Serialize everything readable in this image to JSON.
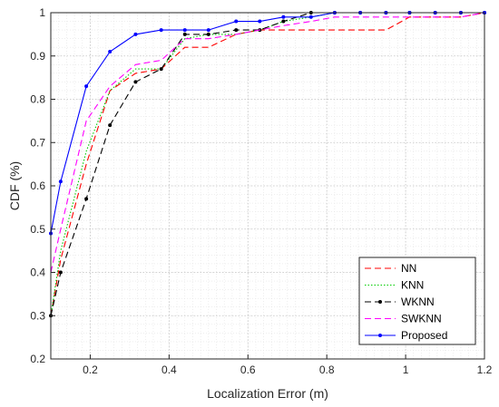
{
  "chart_data": {
    "type": "line",
    "title": "",
    "xlabel": "Localization Error (m)",
    "ylabel": "CDF (%)",
    "xlim": [
      0.1,
      1.2
    ],
    "ylim": [
      0.2,
      1.0
    ],
    "xticks": [
      0.2,
      0.4,
      0.6,
      0.8,
      1,
      1.2
    ],
    "yticks": [
      0.2,
      0.3,
      0.4,
      0.5,
      0.6,
      0.7,
      0.8,
      0.9,
      1
    ],
    "grid": "major and minor, dotted",
    "legend_position": "bottom-right",
    "series": [
      {
        "name": "NN",
        "color": "#ff0000",
        "line_style": "dashed",
        "marker": "none",
        "x": [
          0.1,
          0.125,
          0.19,
          0.25,
          0.315,
          0.38,
          0.44,
          0.5,
          0.57,
          0.63,
          0.69,
          0.76,
          0.82,
          0.885,
          0.95,
          1.01,
          1.075,
          1.14,
          1.2
        ],
        "y": [
          0.3,
          0.43,
          0.65,
          0.82,
          0.86,
          0.87,
          0.92,
          0.92,
          0.95,
          0.96,
          0.96,
          0.96,
          0.96,
          0.96,
          0.96,
          0.99,
          0.99,
          0.99,
          1.0
        ]
      },
      {
        "name": "KNN",
        "color": "#00cc00",
        "line_style": "dotted",
        "marker": "none",
        "x": [
          0.1,
          0.125,
          0.19,
          0.25,
          0.315,
          0.38,
          0.44,
          0.5,
          0.57,
          0.63,
          0.69,
          0.76,
          0.82,
          0.885,
          0.95,
          1.01,
          1.075,
          1.14,
          1.2
        ],
        "y": [
          0.3,
          0.45,
          0.68,
          0.82,
          0.87,
          0.87,
          0.94,
          0.95,
          0.95,
          0.96,
          0.98,
          0.99,
          1.0,
          1.0,
          1.0,
          1.0,
          1.0,
          1.0,
          1.0
        ]
      },
      {
        "name": "WKNN",
        "color": "#000000",
        "line_style": "dashed",
        "marker": "dot",
        "x": [
          0.1,
          0.125,
          0.19,
          0.25,
          0.315,
          0.38,
          0.44,
          0.5,
          0.57,
          0.63,
          0.69,
          0.76,
          0.82,
          0.885,
          0.95,
          1.01,
          1.075,
          1.14,
          1.2
        ],
        "y": [
          0.3,
          0.4,
          0.57,
          0.74,
          0.84,
          0.87,
          0.95,
          0.95,
          0.96,
          0.96,
          0.98,
          1.0,
          1.0,
          1.0,
          1.0,
          1.0,
          1.0,
          1.0,
          1.0
        ]
      },
      {
        "name": "SWKNN",
        "color": "#ff00ff",
        "line_style": "dashed",
        "marker": "none",
        "x": [
          0.1,
          0.125,
          0.19,
          0.25,
          0.315,
          0.38,
          0.44,
          0.5,
          0.57,
          0.63,
          0.69,
          0.76,
          0.82,
          0.885,
          0.95,
          1.01,
          1.075,
          1.14,
          1.2
        ],
        "y": [
          0.4,
          0.5,
          0.75,
          0.83,
          0.88,
          0.89,
          0.94,
          0.94,
          0.95,
          0.96,
          0.97,
          0.98,
          0.99,
          0.99,
          0.99,
          0.99,
          0.99,
          0.99,
          1.0
        ]
      },
      {
        "name": "Proposed",
        "color": "#0000ff",
        "line_style": "solid",
        "marker": "dot",
        "x": [
          0.1,
          0.125,
          0.19,
          0.25,
          0.315,
          0.38,
          0.44,
          0.5,
          0.57,
          0.63,
          0.69,
          0.76,
          0.82,
          0.885,
          0.95,
          1.01,
          1.075,
          1.14,
          1.2
        ],
        "y": [
          0.49,
          0.61,
          0.83,
          0.91,
          0.95,
          0.96,
          0.96,
          0.96,
          0.98,
          0.98,
          0.99,
          0.99,
          1.0,
          1.0,
          1.0,
          1.0,
          1.0,
          1.0,
          1.0
        ]
      }
    ]
  }
}
